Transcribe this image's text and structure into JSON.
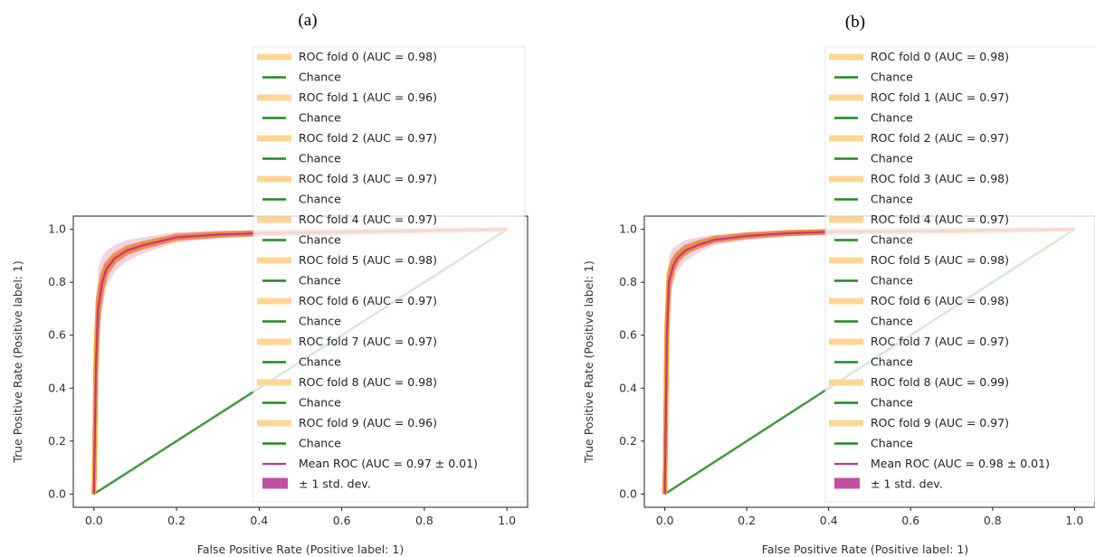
{
  "chart_data": [
    {
      "type": "line",
      "panel_label": "(a)",
      "xlabel": "False Positive Rate (Positive label: 1)",
      "ylabel": "True Positive Rate (Positive label: 1)",
      "xlim": [
        -0.05,
        1.05
      ],
      "ylim": [
        -0.05,
        1.05
      ],
      "xticks": [
        "0.0",
        "0.2",
        "0.4",
        "0.6",
        "0.8",
        "1.0"
      ],
      "yticks": [
        "0.0",
        "0.2",
        "0.4",
        "0.6",
        "0.8",
        "1.0"
      ],
      "legend_placement": "upper-right",
      "folds": [
        {
          "name": "ROC fold 0 (AUC = 0.98)",
          "auc": 0.98
        },
        {
          "name": "ROC fold 1 (AUC = 0.96)",
          "auc": 0.96
        },
        {
          "name": "ROC fold 2 (AUC = 0.97)",
          "auc": 0.97
        },
        {
          "name": "ROC fold 3 (AUC = 0.97)",
          "auc": 0.97
        },
        {
          "name": "ROC fold 4 (AUC = 0.97)",
          "auc": 0.97
        },
        {
          "name": "ROC fold 5 (AUC = 0.98)",
          "auc": 0.98
        },
        {
          "name": "ROC fold 6 (AUC = 0.97)",
          "auc": 0.97
        },
        {
          "name": "ROC fold 7 (AUC = 0.97)",
          "auc": 0.97
        },
        {
          "name": "ROC fold 8 (AUC = 0.98)",
          "auc": 0.98
        },
        {
          "name": "ROC fold 9 (AUC = 0.96)",
          "auc": 0.96
        }
      ],
      "chance_label": "Chance",
      "chance_line": {
        "x": [
          0,
          1
        ],
        "y": [
          0,
          1
        ]
      },
      "mean_roc": {
        "name": "Mean ROC (AUC = 0.97 ± 0.01)",
        "x": [
          0.0,
          0.005,
          0.01,
          0.02,
          0.03,
          0.05,
          0.08,
          0.12,
          0.2,
          0.3,
          0.4,
          0.6,
          0.8,
          1.0
        ],
        "y": [
          0.0,
          0.5,
          0.7,
          0.8,
          0.85,
          0.89,
          0.92,
          0.94,
          0.97,
          0.98,
          0.985,
          0.99,
          0.995,
          1.0
        ]
      },
      "std_band": {
        "name": "± 1 std. dev.",
        "half_width": [
          0.0,
          0.2,
          0.15,
          0.1,
          0.07,
          0.05,
          0.04,
          0.03,
          0.02,
          0.015,
          0.012,
          0.008,
          0.005,
          0.0
        ]
      }
    },
    {
      "type": "line",
      "panel_label": "(b)",
      "xlabel": "False Positive Rate (Positive label: 1)",
      "ylabel": "True Positive Rate (Positive label: 1)",
      "xlim": [
        -0.05,
        1.05
      ],
      "ylim": [
        -0.05,
        1.05
      ],
      "xticks": [
        "0.0",
        "0.2",
        "0.4",
        "0.6",
        "0.8",
        "1.0"
      ],
      "yticks": [
        "0.0",
        "0.2",
        "0.4",
        "0.6",
        "0.8",
        "1.0"
      ],
      "legend_placement": "upper-right",
      "folds": [
        {
          "name": "ROC fold 0 (AUC = 0.98)",
          "auc": 0.98
        },
        {
          "name": "ROC fold 1 (AUC = 0.97)",
          "auc": 0.97
        },
        {
          "name": "ROC fold 2 (AUC = 0.97)",
          "auc": 0.97
        },
        {
          "name": "ROC fold 3 (AUC = 0.98)",
          "auc": 0.98
        },
        {
          "name": "ROC fold 4 (AUC = 0.97)",
          "auc": 0.97
        },
        {
          "name": "ROC fold 5 (AUC = 0.98)",
          "auc": 0.98
        },
        {
          "name": "ROC fold 6 (AUC = 0.98)",
          "auc": 0.98
        },
        {
          "name": "ROC fold 7 (AUC = 0.97)",
          "auc": 0.97
        },
        {
          "name": "ROC fold 8 (AUC = 0.99)",
          "auc": 0.99
        },
        {
          "name": "ROC fold 9 (AUC = 0.97)",
          "auc": 0.97
        }
      ],
      "chance_label": "Chance",
      "chance_line": {
        "x": [
          0,
          1
        ],
        "y": [
          0,
          1
        ]
      },
      "mean_roc": {
        "name": "Mean ROC (AUC = 0.98 ± 0.01)",
        "x": [
          0.0,
          0.005,
          0.01,
          0.02,
          0.03,
          0.05,
          0.08,
          0.12,
          0.2,
          0.3,
          0.4,
          0.6,
          0.8,
          1.0
        ],
        "y": [
          0.0,
          0.6,
          0.8,
          0.86,
          0.89,
          0.92,
          0.94,
          0.96,
          0.975,
          0.985,
          0.99,
          0.993,
          0.996,
          1.0
        ]
      },
      "std_band": {
        "name": "± 1 std. dev.",
        "half_width": [
          0.0,
          0.15,
          0.1,
          0.07,
          0.05,
          0.04,
          0.03,
          0.02,
          0.015,
          0.012,
          0.01,
          0.006,
          0.004,
          0.0
        ]
      }
    }
  ],
  "colors": {
    "fold": "#f7a21b",
    "fold_legend": "#fdd695",
    "chance": "#1e8a1e",
    "mean": "#c8328c",
    "std": "#c250a0",
    "axis": "#222222"
  }
}
